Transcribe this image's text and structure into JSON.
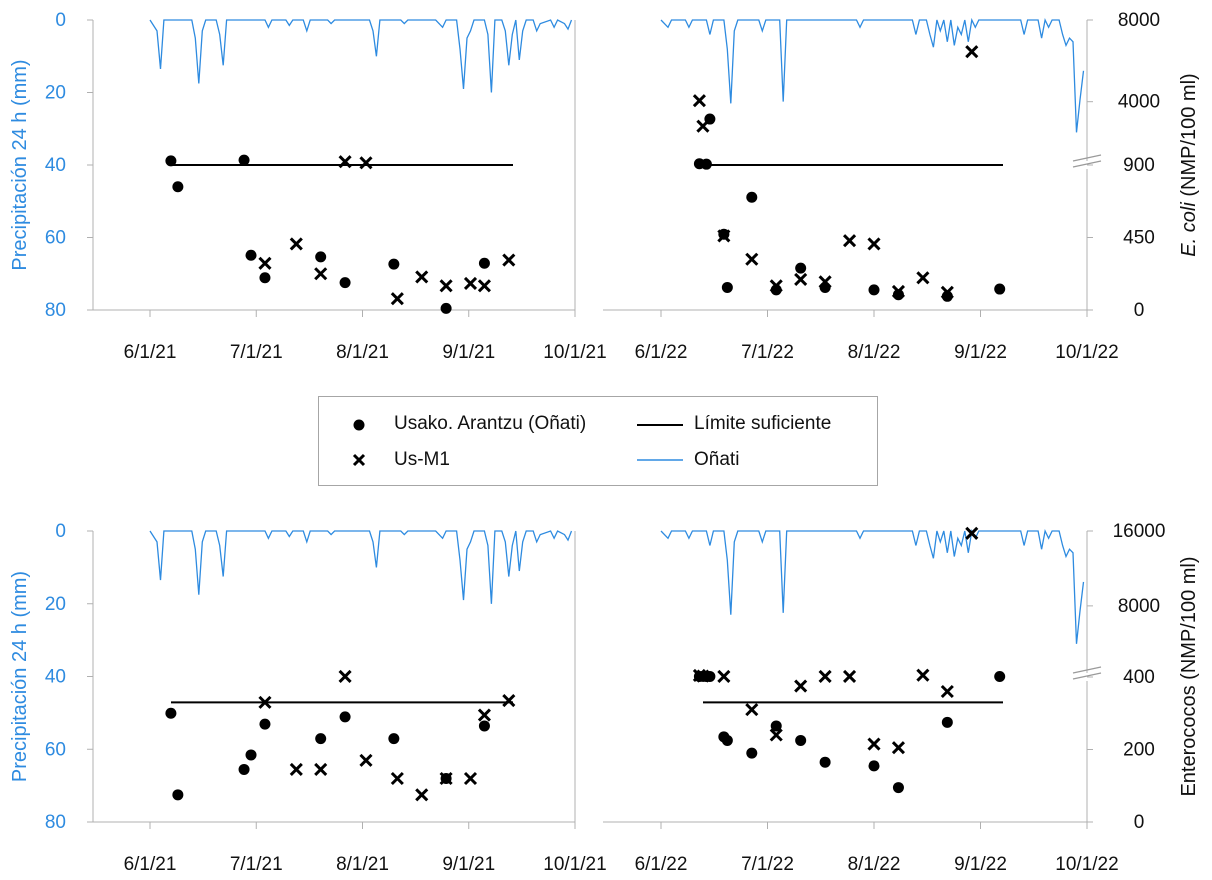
{
  "legend": {
    "usako": "Usako. Arantzu (Oñati)",
    "usm1": "Us-M1",
    "limit": "Límite suficiente",
    "onati": "Oñati"
  },
  "colors": {
    "precip": "#2e8be0",
    "points": "#000000",
    "limit": "#000000",
    "axis": "#b0b0b0",
    "precip_label": "#2e8be0"
  },
  "chart_data": [
    {
      "type": "scatter",
      "panel": "top",
      "ylabel_left": "Precipitación 24 h (mm)",
      "ylabel_right": {
        "italic": "E. coli",
        "rest": " (NMP/100 ml)"
      },
      "left_ticks": [
        "0",
        "20",
        "40",
        "60",
        "80"
      ],
      "right_ticks": [
        "8000",
        "4000",
        "900",
        "450",
        "0"
      ],
      "right_axis_note": "broken axis: 0–900 linear, then 900–8000",
      "x_ticks_2021": [
        "6/1/21",
        "7/1/21",
        "8/1/21",
        "9/1/21",
        "10/1/21"
      ],
      "x_ticks_2022": [
        "6/1/22",
        "7/1/22",
        "8/1/22",
        "9/1/22",
        "10/1/22"
      ],
      "limit_value": 900,
      "series_2021": {
        "usako": [
          [
            "2021-06-07",
            1100
          ],
          [
            "2021-06-09",
            765
          ],
          [
            "2021-06-28",
            1140
          ],
          [
            "2021-06-30",
            340
          ],
          [
            "2021-07-04",
            200
          ],
          [
            "2021-07-20",
            330
          ],
          [
            "2021-07-27",
            170
          ],
          [
            "2021-08-10",
            285
          ],
          [
            "2021-08-25",
            10
          ],
          [
            "2021-09-05",
            290
          ]
        ],
        "usm1": [
          [
            "2021-07-04",
            290
          ],
          [
            "2021-07-13",
            410
          ],
          [
            "2021-07-20",
            225
          ],
          [
            "2021-07-27",
            1060
          ],
          [
            "2021-08-02",
            1010
          ],
          [
            "2021-08-11",
            70
          ],
          [
            "2021-08-18",
            205
          ],
          [
            "2021-08-25",
            150
          ],
          [
            "2021-09-01",
            165
          ],
          [
            "2021-09-05",
            150
          ],
          [
            "2021-09-12",
            310
          ]
        ]
      },
      "series_2022": {
        "usako": [
          [
            "2022-06-12",
            960
          ],
          [
            "2022-06-14",
            940
          ],
          [
            "2022-06-15",
            3150
          ],
          [
            "2022-06-19",
            470
          ],
          [
            "2022-06-20",
            140
          ],
          [
            "2022-06-27",
            700
          ],
          [
            "2022-07-04",
            125
          ],
          [
            "2022-07-11",
            260
          ],
          [
            "2022-07-18",
            140
          ],
          [
            "2022-08-01",
            125
          ],
          [
            "2022-08-08",
            95
          ],
          [
            "2022-08-22",
            85
          ],
          [
            "2022-09-06",
            130
          ]
        ],
        "usm1": [
          [
            "2022-06-12",
            4050
          ],
          [
            "2022-06-13",
            2800
          ],
          [
            "2022-06-19",
            460
          ],
          [
            "2022-06-27",
            315
          ],
          [
            "2022-07-04",
            150
          ],
          [
            "2022-07-11",
            190
          ],
          [
            "2022-07-18",
            175
          ],
          [
            "2022-07-25",
            430
          ],
          [
            "2022-08-01",
            410
          ],
          [
            "2022-08-08",
            115
          ],
          [
            "2022-08-15",
            200
          ],
          [
            "2022-08-22",
            110
          ],
          [
            "2022-08-29",
            6450
          ]
        ]
      }
    },
    {
      "type": "scatter",
      "panel": "bottom",
      "ylabel_left": "Precipitación 24 h (mm)",
      "ylabel_right": {
        "italic": "",
        "rest": "Enterococos (NMP/100 ml)"
      },
      "left_ticks": [
        "0",
        "20",
        "40",
        "60",
        "80"
      ],
      "right_ticks": [
        "16000",
        "8000",
        "400",
        "200",
        "0"
      ],
      "right_axis_note": "broken axis: 0–400 linear, then 400–16000",
      "x_ticks_2021": [
        "6/1/21",
        "7/1/21",
        "8/1/21",
        "9/1/21",
        "10/1/21"
      ],
      "x_ticks_2022": [
        "6/1/22",
        "7/1/22",
        "8/1/22",
        "9/1/22",
        "10/1/22"
      ],
      "limit_value": 330,
      "series_2021": {
        "usako": [
          [
            "2021-06-07",
            300
          ],
          [
            "2021-06-09",
            75
          ],
          [
            "2021-06-28",
            145
          ],
          [
            "2021-06-30",
            185
          ],
          [
            "2021-07-04",
            270
          ],
          [
            "2021-07-20",
            230
          ],
          [
            "2021-07-27",
            290
          ],
          [
            "2021-08-10",
            230
          ],
          [
            "2021-08-25",
            120
          ],
          [
            "2021-09-05",
            265
          ]
        ],
        "usm1": [
          [
            "2021-07-04",
            330
          ],
          [
            "2021-07-13",
            145
          ],
          [
            "2021-07-20",
            145
          ],
          [
            "2021-07-27",
            455
          ],
          [
            "2021-08-02",
            170
          ],
          [
            "2021-08-11",
            120
          ],
          [
            "2021-08-18",
            75
          ],
          [
            "2021-08-25",
            120
          ],
          [
            "2021-09-01",
            120
          ],
          [
            "2021-09-05",
            295
          ],
          [
            "2021-09-12",
            335
          ]
        ]
      },
      "series_2022": {
        "usako": [
          [
            "2022-06-12",
            460
          ],
          [
            "2022-06-13",
            470
          ],
          [
            "2022-06-14",
            455
          ],
          [
            "2022-06-15",
            460
          ],
          [
            "2022-06-19",
            235
          ],
          [
            "2022-06-20",
            225
          ],
          [
            "2022-06-27",
            190
          ],
          [
            "2022-07-04",
            265
          ],
          [
            "2022-07-11",
            225
          ],
          [
            "2022-07-18",
            165
          ],
          [
            "2022-08-01",
            155
          ],
          [
            "2022-08-08",
            95
          ],
          [
            "2022-08-22",
            275
          ],
          [
            "2022-09-06",
            455
          ]
        ],
        "usm1": [
          [
            "2022-06-12",
            570
          ],
          [
            "2022-06-13",
            500
          ],
          [
            "2022-06-19",
            460
          ],
          [
            "2022-06-27",
            310
          ],
          [
            "2022-07-04",
            240
          ],
          [
            "2022-07-11",
            375
          ],
          [
            "2022-07-18",
            460
          ],
          [
            "2022-07-25",
            455
          ],
          [
            "2022-08-01",
            215
          ],
          [
            "2022-08-08",
            205
          ],
          [
            "2022-08-15",
            590
          ],
          [
            "2022-08-22",
            360
          ],
          [
            "2022-08-29",
            15750
          ]
        ]
      }
    }
  ],
  "precip_onati": {
    "2021": [
      [
        "2021-06-01",
        0
      ],
      [
        "2021-06-03",
        3
      ],
      [
        "2021-06-04",
        13.5
      ],
      [
        "2021-06-05",
        0
      ],
      [
        "2021-06-13",
        0
      ],
      [
        "2021-06-14",
        5
      ],
      [
        "2021-06-15",
        17.5
      ],
      [
        "2021-06-16",
        3
      ],
      [
        "2021-06-17",
        0
      ],
      [
        "2021-06-20",
        0
      ],
      [
        "2021-06-21",
        4
      ],
      [
        "2021-06-22",
        12.5
      ],
      [
        "2021-06-23",
        0
      ],
      [
        "2021-07-04",
        0
      ],
      [
        "2021-07-05",
        2
      ],
      [
        "2021-07-06",
        0
      ],
      [
        "2021-07-10",
        0
      ],
      [
        "2021-07-11",
        1.5
      ],
      [
        "2021-07-12",
        0
      ],
      [
        "2021-07-15",
        0
      ],
      [
        "2021-07-16",
        3
      ],
      [
        "2021-07-17",
        0
      ],
      [
        "2021-07-22",
        0
      ],
      [
        "2021-07-23",
        1
      ],
      [
        "2021-07-24",
        0
      ],
      [
        "2021-08-03",
        0
      ],
      [
        "2021-08-04",
        3
      ],
      [
        "2021-08-05",
        10
      ],
      [
        "2021-08-06",
        0
      ],
      [
        "2021-08-12",
        0
      ],
      [
        "2021-08-13",
        1
      ],
      [
        "2021-08-14",
        0
      ],
      [
        "2021-08-22",
        0
      ],
      [
        "2021-08-24",
        2
      ],
      [
        "2021-08-25",
        0
      ],
      [
        "2021-08-28",
        0
      ],
      [
        "2021-08-29",
        8
      ],
      [
        "2021-08-30",
        19
      ],
      [
        "2021-08-31",
        5
      ],
      [
        "2021-09-01",
        3
      ],
      [
        "2021-09-02",
        0
      ],
      [
        "2021-09-05",
        0
      ],
      [
        "2021-09-06",
        4
      ],
      [
        "2021-09-07",
        20
      ],
      [
        "2021-09-08",
        0
      ],
      [
        "2021-09-10",
        0
      ],
      [
        "2021-09-11",
        3
      ],
      [
        "2021-09-12",
        12.5
      ],
      [
        "2021-09-13",
        4
      ],
      [
        "2021-09-14",
        0
      ],
      [
        "2021-09-15",
        11
      ],
      [
        "2021-09-16",
        3
      ],
      [
        "2021-09-17",
        0
      ],
      [
        "2021-09-19",
        0
      ],
      [
        "2021-09-20",
        3
      ],
      [
        "2021-09-21",
        1
      ],
      [
        "2021-09-24",
        0
      ],
      [
        "2021-09-25",
        2
      ],
      [
        "2021-09-26",
        0
      ],
      [
        "2021-09-28",
        1
      ],
      [
        "2021-09-29",
        2.5
      ],
      [
        "2021-09-30",
        0
      ]
    ],
    "2022": [
      [
        "2022-06-01",
        0
      ],
      [
        "2022-06-03",
        2
      ],
      [
        "2022-06-04",
        0
      ],
      [
        "2022-06-08",
        0
      ],
      [
        "2022-06-09",
        2
      ],
      [
        "2022-06-10",
        0
      ],
      [
        "2022-06-14",
        0
      ],
      [
        "2022-06-15",
        4
      ],
      [
        "2022-06-16",
        0
      ],
      [
        "2022-06-19",
        0
      ],
      [
        "2022-06-20",
        8
      ],
      [
        "2022-06-21",
        23
      ],
      [
        "2022-06-22",
        3
      ],
      [
        "2022-06-23",
        0
      ],
      [
        "2022-06-29",
        0
      ],
      [
        "2022-06-30",
        3
      ],
      [
        "2022-07-01",
        0
      ],
      [
        "2022-07-05",
        0
      ],
      [
        "2022-07-06",
        22.5
      ],
      [
        "2022-07-07",
        0
      ],
      [
        "2022-07-27",
        0
      ],
      [
        "2022-07-28",
        2
      ],
      [
        "2022-07-29",
        0
      ],
      [
        "2022-08-12",
        0
      ],
      [
        "2022-08-13",
        4
      ],
      [
        "2022-08-14",
        0
      ],
      [
        "2022-08-16",
        0
      ],
      [
        "2022-08-17",
        4
      ],
      [
        "2022-08-18",
        7.5
      ],
      [
        "2022-08-19",
        0
      ],
      [
        "2022-08-20",
        3
      ],
      [
        "2022-08-21",
        0
      ],
      [
        "2022-08-22",
        6
      ],
      [
        "2022-08-23",
        0
      ],
      [
        "2022-08-24",
        7
      ],
      [
        "2022-08-25",
        2
      ],
      [
        "2022-08-26",
        4
      ],
      [
        "2022-08-27",
        0
      ],
      [
        "2022-08-28",
        6
      ],
      [
        "2022-08-29",
        0
      ],
      [
        "2022-08-30",
        2
      ],
      [
        "2022-08-31",
        0
      ],
      [
        "2022-09-12",
        0
      ],
      [
        "2022-09-13",
        4
      ],
      [
        "2022-09-14",
        0
      ],
      [
        "2022-09-17",
        0
      ],
      [
        "2022-09-18",
        5
      ],
      [
        "2022-09-19",
        0
      ],
      [
        "2022-09-20",
        2
      ],
      [
        "2022-09-21",
        0
      ],
      [
        "2022-09-23",
        0
      ],
      [
        "2022-09-24",
        4
      ],
      [
        "2022-09-25",
        7
      ],
      [
        "2022-09-26",
        5
      ],
      [
        "2022-09-27",
        6
      ],
      [
        "2022-09-28",
        31
      ],
      [
        "2022-09-29",
        22
      ],
      [
        "2022-09-30",
        14
      ]
    ]
  }
}
